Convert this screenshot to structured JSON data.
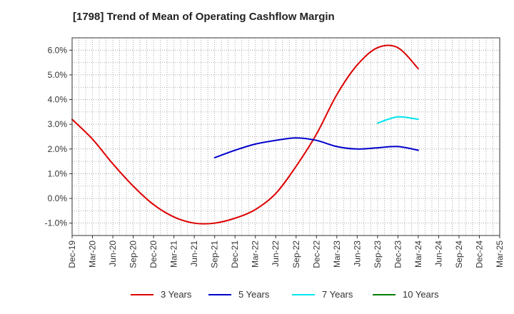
{
  "chart_data": {
    "type": "line",
    "title": "[1798]  Trend of Mean of Operating Cashflow Margin",
    "xlabel": "",
    "ylabel": "",
    "categories": [
      "Dec-19",
      "Mar-20",
      "Jun-20",
      "Sep-20",
      "Dec-20",
      "Mar-21",
      "Jun-21",
      "Sep-21",
      "Dec-21",
      "Mar-22",
      "Jun-22",
      "Sep-22",
      "Dec-22",
      "Mar-23",
      "Jun-23",
      "Sep-23",
      "Dec-23",
      "Mar-24",
      "Jun-24",
      "Sep-24",
      "Dec-24",
      "Mar-25"
    ],
    "ylim": [
      -1.5,
      6.5
    ],
    "yticks": [
      -1.0,
      0.0,
      1.0,
      2.0,
      3.0,
      4.0,
      5.0,
      6.0
    ],
    "ytick_labels": [
      "-1.0%",
      "0.0%",
      "1.0%",
      "2.0%",
      "3.0%",
      "4.0%",
      "5.0%",
      "6.0%"
    ],
    "grid": true,
    "legend_position": "bottom",
    "series": [
      {
        "name": "3 Years",
        "color": "#dd0000",
        "values": [
          3.2,
          2.4,
          1.4,
          0.5,
          -0.25,
          -0.75,
          -1.0,
          -1.0,
          -0.8,
          -0.45,
          0.2,
          1.3,
          2.6,
          4.2,
          5.4,
          6.1,
          6.1,
          5.25,
          null,
          null,
          null,
          null
        ]
      },
      {
        "name": "5 Years",
        "color": "#0000cc",
        "values": [
          null,
          null,
          null,
          null,
          null,
          null,
          null,
          1.65,
          1.95,
          2.2,
          2.35,
          2.45,
          2.35,
          2.1,
          2.0,
          2.05,
          2.1,
          1.95,
          null,
          null,
          null,
          null
        ]
      },
      {
        "name": "7 Years",
        "color": "#00e5ee",
        "values": [
          null,
          null,
          null,
          null,
          null,
          null,
          null,
          null,
          null,
          null,
          null,
          null,
          null,
          null,
          null,
          3.05,
          3.3,
          3.2,
          null,
          null,
          null,
          null
        ]
      },
      {
        "name": "10 Years",
        "color": "#008000",
        "values": [
          null,
          null,
          null,
          null,
          null,
          null,
          null,
          null,
          null,
          null,
          null,
          null,
          null,
          null,
          null,
          null,
          null,
          null,
          null,
          null,
          null,
          null
        ]
      }
    ]
  }
}
